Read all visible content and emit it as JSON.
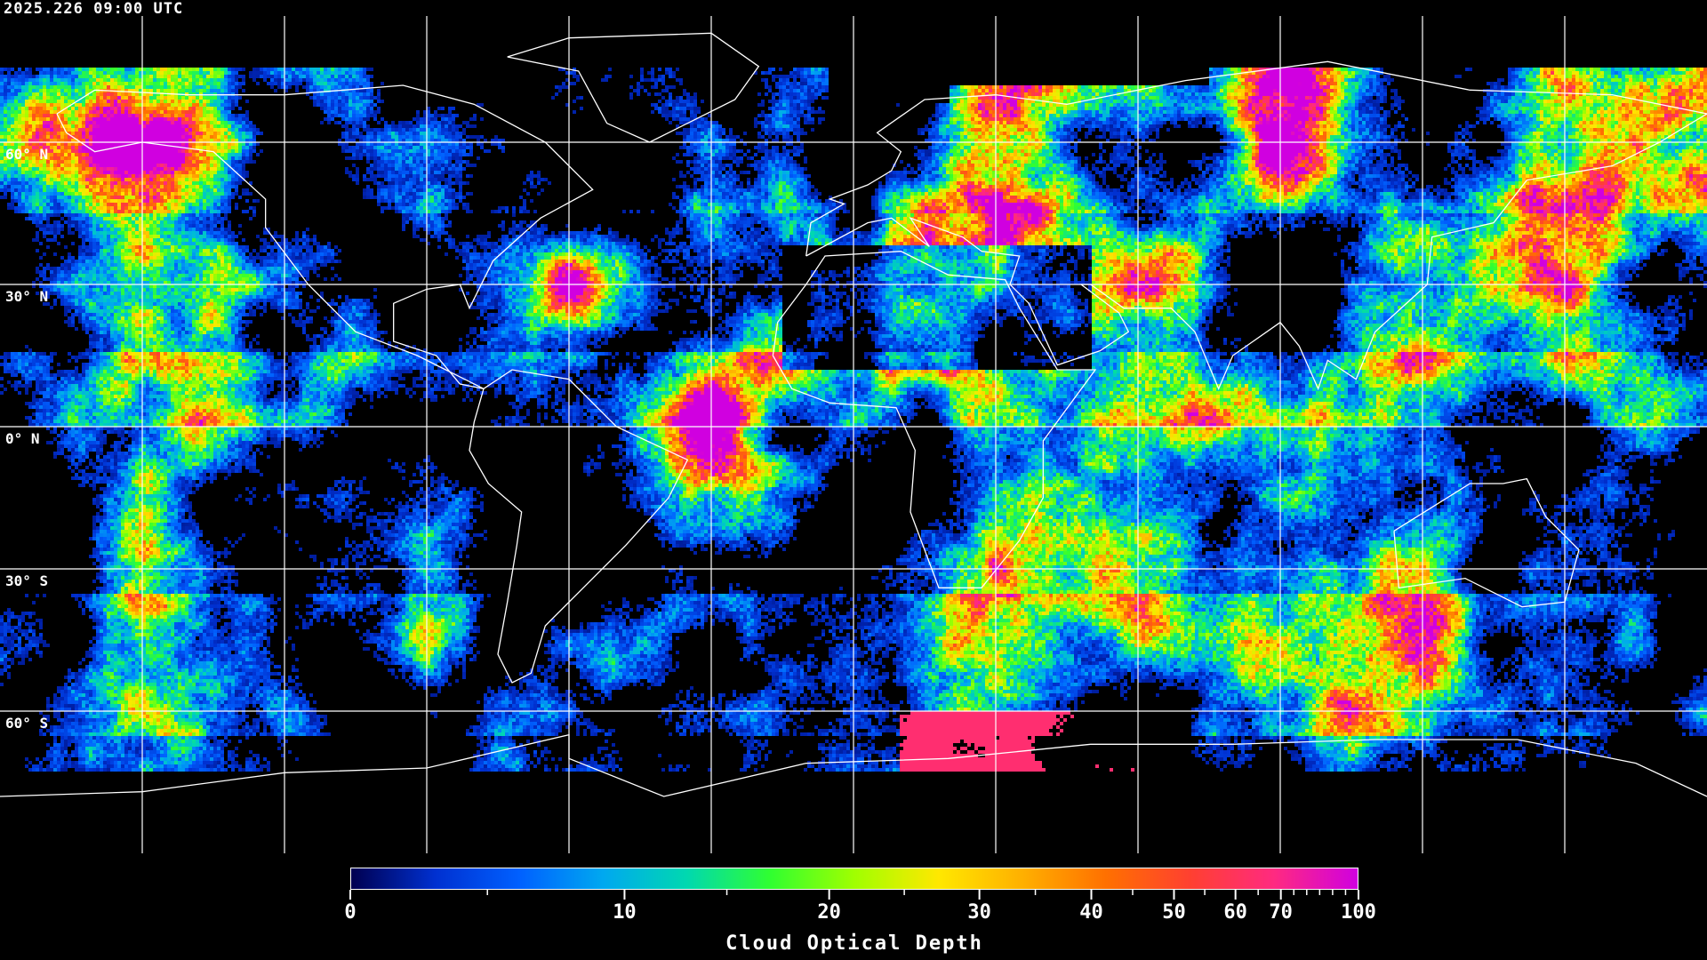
{
  "header": {
    "timestamp": "2025.226 09:00 UTC"
  },
  "map": {
    "projection": "equirectangular",
    "lon_range": [
      -180,
      180
    ],
    "lat_range": [
      -90,
      90
    ],
    "grid_lon_step": 30,
    "grid_lat_step": 30,
    "grid_color": "#ffffff",
    "coastline_color": "#ffffff",
    "no_data_color": "#000000",
    "lat_labels": [
      "60° N",
      "30° N",
      "0° N",
      "30° S",
      "60° S"
    ]
  },
  "colorbar": {
    "title": "Cloud Optical Depth",
    "range": [
      0,
      100
    ],
    "tick_labels": [
      "0",
      "10",
      "20",
      "30",
      "40",
      "50",
      "60",
      "70",
      "100"
    ],
    "colormap": [
      "#000050",
      "#0030d0",
      "#0060ff",
      "#00a8f0",
      "#00d8b0",
      "#30ff30",
      "#a0ff00",
      "#ffe800",
      "#ffb000",
      "#ff7000",
      "#ff4030",
      "#ff2a80",
      "#d000e0"
    ]
  }
}
